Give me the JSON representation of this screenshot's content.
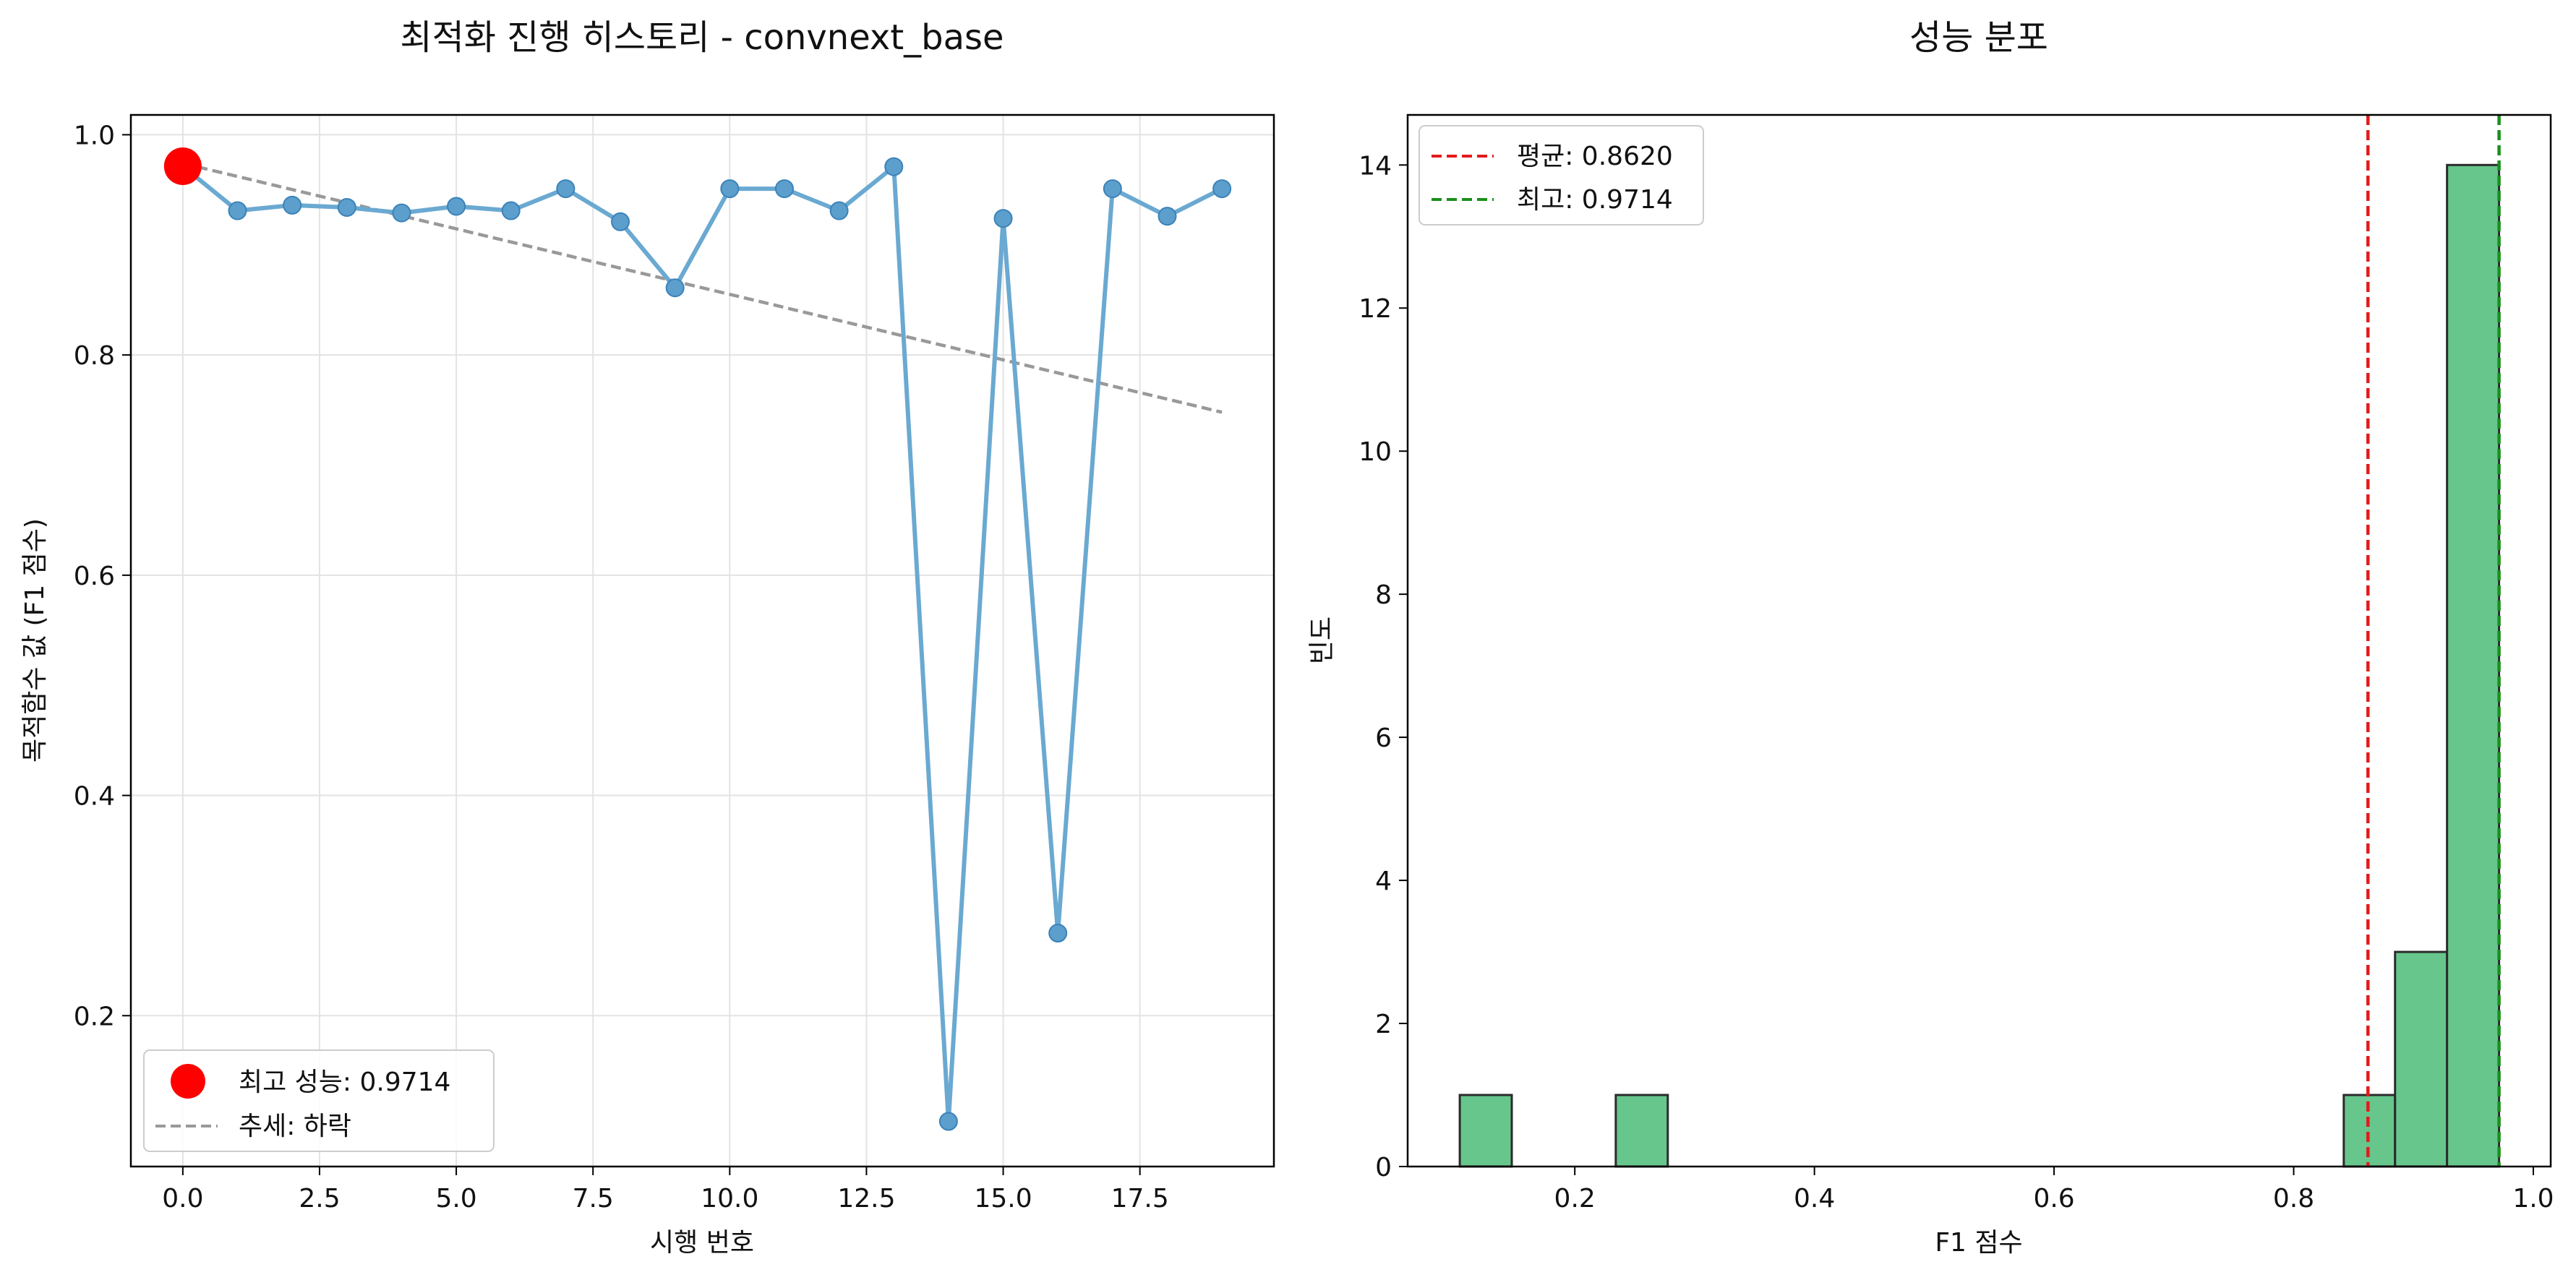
{
  "chart_data": [
    {
      "type": "line",
      "title": "최적화 진행 히스토리 - convnext_base",
      "xlabel": "시행 번호",
      "ylabel": "목적함수 값 (F1 점수)",
      "xlim": [
        -0.95,
        19.95
      ],
      "ylim": [
        0.063,
        1.018
      ],
      "xticks": [
        0.0,
        2.5,
        5.0,
        7.5,
        10.0,
        12.5,
        15.0,
        17.5
      ],
      "xtick_labels": [
        "0.0",
        "2.5",
        "5.0",
        "7.5",
        "10.0",
        "12.5",
        "15.0",
        "17.5"
      ],
      "yticks": [
        0.2,
        0.4,
        0.6,
        0.8,
        1.0
      ],
      "ytick_labels": [
        "0.2",
        "0.4",
        "0.6",
        "0.8",
        "1.0"
      ],
      "grid": true,
      "series": [
        {
          "name": "trials",
          "color": "#1f77b4",
          "x": [
            0,
            1,
            2,
            3,
            4,
            5,
            6,
            7,
            8,
            9,
            10,
            11,
            12,
            13,
            14,
            15,
            16,
            17,
            18,
            19
          ],
          "values": [
            0.9714,
            0.931,
            0.936,
            0.934,
            0.929,
            0.935,
            0.931,
            0.951,
            0.921,
            0.861,
            0.951,
            0.951,
            0.931,
            0.971,
            0.104,
            0.924,
            0.275,
            0.951,
            0.926,
            0.951
          ]
        }
      ],
      "best_point": {
        "x": 0,
        "y": 0.9714,
        "color": "#ff0000"
      },
      "trend": {
        "x": [
          0,
          19
        ],
        "y": [
          0.974,
          0.748
        ],
        "color": "#999999"
      },
      "legend": {
        "position": "lower-left",
        "best_label": "최고 성능: 0.9714",
        "trend_label": "추세: 하락"
      }
    },
    {
      "type": "histogram",
      "title": "성능 분포",
      "xlabel": "F1 점수",
      "ylabel": "빈도",
      "xlim": [
        0.0605,
        1.0145
      ],
      "ylim": [
        0,
        14.7
      ],
      "xticks": [
        0.2,
        0.4,
        0.6,
        0.8,
        1.0
      ],
      "xtick_labels": [
        "0.2",
        "0.4",
        "0.6",
        "0.8",
        "1.0"
      ],
      "yticks": [
        0,
        2,
        4,
        6,
        8,
        10,
        12,
        14
      ],
      "ytick_labels": [
        "0",
        "2",
        "4",
        "6",
        "8",
        "10",
        "12",
        "14"
      ],
      "bar_color": "#66c68c",
      "bins": [
        {
          "x0": 0.104,
          "x1": 0.1474,
          "count": 1
        },
        {
          "x0": 0.2342,
          "x1": 0.2776,
          "count": 1
        },
        {
          "x0": 0.8418,
          "x1": 0.8846,
          "count": 1
        },
        {
          "x0": 0.8846,
          "x1": 0.928,
          "count": 3
        },
        {
          "x0": 0.928,
          "x1": 0.9714,
          "count": 14
        }
      ],
      "mean": {
        "value": 0.862,
        "color": "#e41a1c",
        "label": "평균: 0.8620"
      },
      "best": {
        "value": 0.9714,
        "color": "#1a8f1a",
        "label": "최고: 0.9714"
      },
      "legend": {
        "position": "top-left"
      }
    }
  ]
}
